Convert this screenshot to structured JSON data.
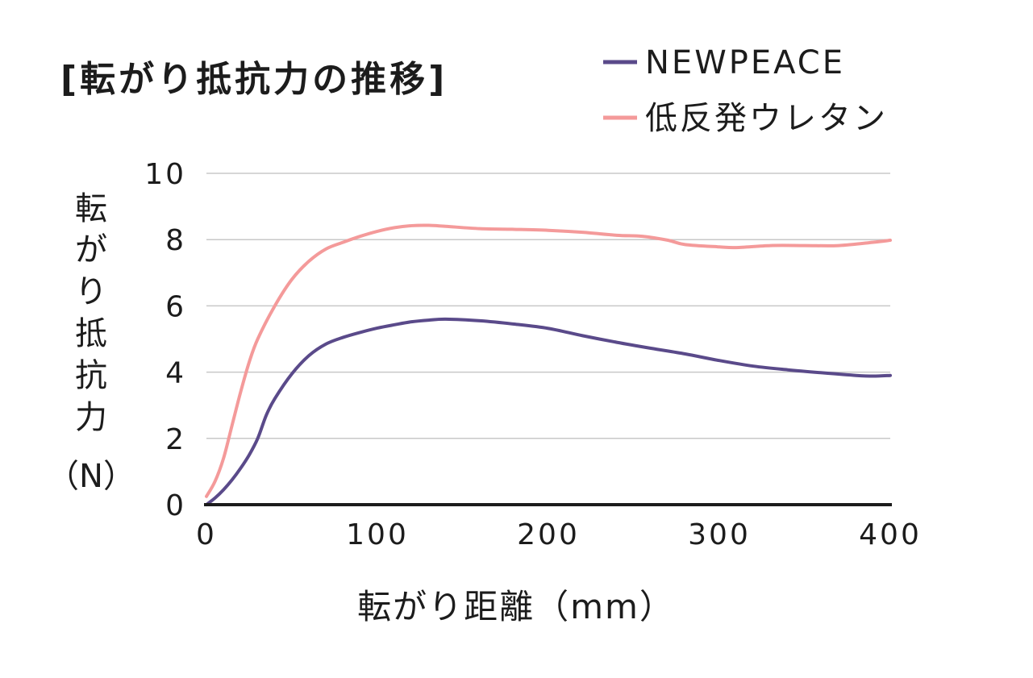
{
  "chart_data": {
    "type": "line",
    "title": "[転がり抵抗力の推移]",
    "xlabel": "転がり距離（mm）",
    "ylabel_chars": [
      "転",
      "が",
      "り",
      "抵",
      "抗",
      "力",
      "（N）"
    ],
    "xlim": [
      0,
      400
    ],
    "ylim": [
      0,
      10
    ],
    "xticks": [
      0,
      100,
      200,
      300,
      400
    ],
    "yticks": [
      0,
      2,
      4,
      6,
      8,
      10
    ],
    "grid": true,
    "legend_position": "top-right",
    "series": [
      {
        "name": "NEWPEACE",
        "color": "#5a4a8a",
        "x": [
          0,
          5,
          10,
          15,
          20,
          25,
          30,
          35,
          40,
          50,
          60,
          70,
          80,
          90,
          100,
          110,
          120,
          130,
          140,
          160,
          180,
          200,
          220,
          240,
          260,
          280,
          300,
          320,
          340,
          360,
          380,
          390,
          400
        ],
        "y": [
          0,
          0.2,
          0.45,
          0.75,
          1.1,
          1.5,
          2.0,
          2.7,
          3.2,
          3.95,
          4.5,
          4.85,
          5.05,
          5.2,
          5.33,
          5.43,
          5.52,
          5.57,
          5.6,
          5.55,
          5.45,
          5.32,
          5.1,
          4.9,
          4.72,
          4.55,
          4.35,
          4.18,
          4.07,
          3.98,
          3.9,
          3.88,
          3.9
        ]
      },
      {
        "name": "低反発ウレタン",
        "color": "#f49a9a",
        "x": [
          0,
          5,
          10,
          15,
          20,
          25,
          30,
          40,
          50,
          60,
          70,
          80,
          90,
          100,
          110,
          120,
          130,
          140,
          160,
          180,
          200,
          220,
          240,
          255,
          270,
          280,
          300,
          310,
          330,
          350,
          370,
          390,
          400
        ],
        "y": [
          0.25,
          0.7,
          1.4,
          2.4,
          3.4,
          4.3,
          5.0,
          6.0,
          6.8,
          7.35,
          7.72,
          7.92,
          8.1,
          8.25,
          8.36,
          8.42,
          8.43,
          8.4,
          8.33,
          8.31,
          8.28,
          8.22,
          8.13,
          8.1,
          7.98,
          7.85,
          7.78,
          7.76,
          7.82,
          7.82,
          7.82,
          7.92,
          7.98
        ]
      }
    ]
  }
}
